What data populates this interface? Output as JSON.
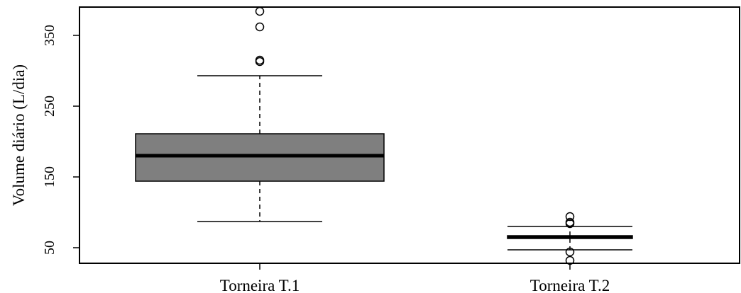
{
  "chart_data": {
    "type": "boxplot",
    "title": "",
    "xlabel": "",
    "ylabel": "Volume diário (L/dia)",
    "ylim": [
      28,
      390
    ],
    "yticks": [
      50,
      150,
      250,
      350
    ],
    "categories": [
      "Torneira T.1",
      "Torneira T.2"
    ],
    "boxes": [
      {
        "label": "Torneira T.1",
        "fill": "#7f7f7f",
        "whisker_low": 87,
        "q1": 144,
        "median": 180,
        "q3": 211,
        "whisker_high": 293,
        "outliers": [
          384,
          362,
          315,
          313
        ]
      },
      {
        "label": "Torneira T.2",
        "fill": "#7f7f7f",
        "whisker_low": 47,
        "q1": 63,
        "median": 65,
        "q3": 67,
        "whisker_high": 80,
        "outliers": [
          94,
          86,
          84,
          44,
          32
        ]
      }
    ]
  }
}
